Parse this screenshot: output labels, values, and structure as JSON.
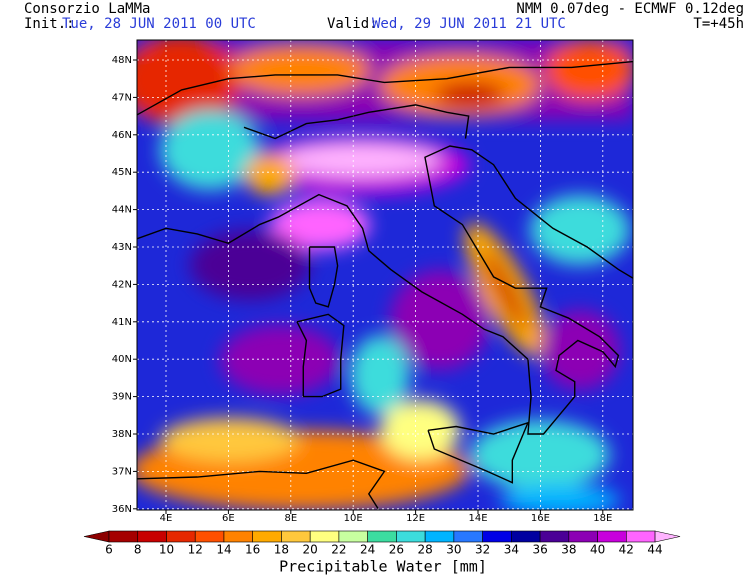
{
  "header": {
    "left_title": "Consorzio LaMMa",
    "init_label": "Init.:",
    "init_time": "Tue, 28 JUN 2011  00 UTC",
    "valid_label": "Valid:",
    "valid_time": "Wed, 29 JUN 2011  21 UTC",
    "model": "NMM 0.07deg - ECMWF 0.12deg",
    "lead_time": "T=+45h"
  },
  "map": {
    "lat_labels": [
      "48N",
      "47N",
      "46N",
      "45N",
      "44N",
      "43N",
      "42N",
      "41N",
      "40N",
      "39N",
      "38N",
      "37N",
      "36N"
    ],
    "lon_labels": [
      "4E",
      "6E",
      "8E",
      "10E",
      "12E",
      "14E",
      "16E",
      "18E"
    ]
  },
  "colorbar": {
    "title": "Precipitable Water [mm]",
    "ticks": [
      6,
      8,
      10,
      12,
      14,
      16,
      18,
      20,
      22,
      24,
      26,
      28,
      30,
      32,
      34,
      36,
      38,
      40,
      42,
      44
    ],
    "colors": [
      "#8c0000",
      "#a50000",
      "#c80000",
      "#e62800",
      "#ff5000",
      "#ff8200",
      "#ffaa00",
      "#ffc83c",
      "#ffff80",
      "#c8ffa0",
      "#3cdca0",
      "#3cdcdc",
      "#00b4ff",
      "#2878ff",
      "#0000e6",
      "#0000a0",
      "#4b0096",
      "#8c00b4",
      "#c800dc",
      "#ff64ff",
      "#ffb4ff"
    ]
  }
}
